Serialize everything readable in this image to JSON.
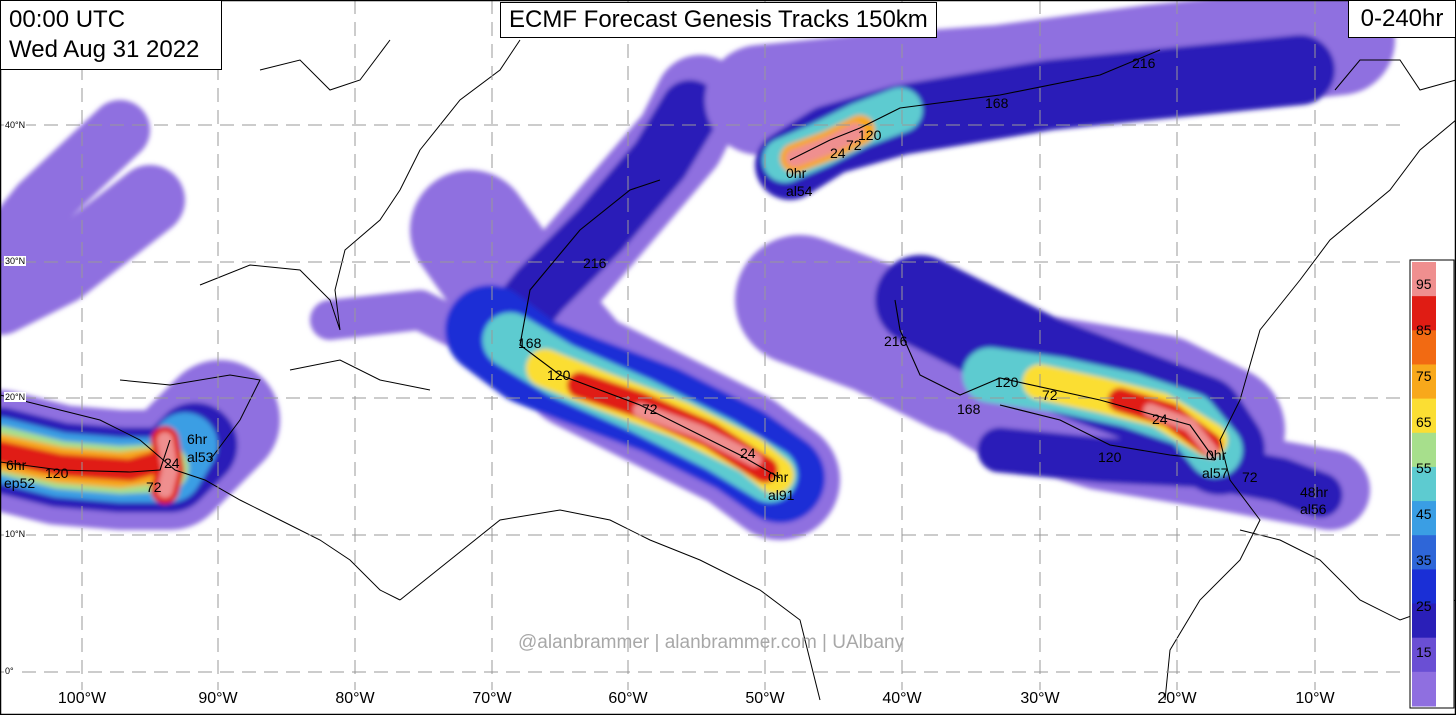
{
  "header": {
    "time_utc": "00:00 UTC",
    "date": "Wed Aug 31 2022",
    "title": "ECMF Forecast Genesis Tracks 150km",
    "range": "0-240hr"
  },
  "credit": "@alanbrammer | alanbrammer.com | UAlbany",
  "axes": {
    "lon_labels": [
      "100°W",
      "90°W",
      "80°W",
      "70°W",
      "60°W",
      "50°W",
      "40°W",
      "30°W",
      "20°W",
      "10°W"
    ],
    "lat_labels": [
      "40°N",
      "30°N",
      "20°N",
      "10°N",
      "0°"
    ]
  },
  "colorbar": {
    "labels": [
      "95",
      "85",
      "75",
      "65",
      "55",
      "45",
      "35",
      "25",
      "15"
    ],
    "colors": [
      "#ef8f8f",
      "#e01c14",
      "#f26a12",
      "#f8a81b",
      "#fbde33",
      "#a7df8c",
      "#5dcbd0",
      "#3a9ee4",
      "#2e66d8",
      "#1a2fd6",
      "#2a1fb8",
      "#6a4fd4",
      "#8f6fe0"
    ]
  },
  "systems": [
    {
      "id": "ep52",
      "labels": [
        "6hr",
        "ep52",
        "120",
        "72",
        "24"
      ]
    },
    {
      "id": "al53",
      "labels": [
        "6hr",
        "al53"
      ]
    },
    {
      "id": "al91",
      "labels": [
        "0hr",
        "al91",
        "24",
        "72",
        "120",
        "168",
        "216"
      ]
    },
    {
      "id": "al54",
      "labels": [
        "0hr",
        "al54",
        "24",
        "72",
        "120",
        "168",
        "216"
      ]
    },
    {
      "id": "al57",
      "labels": [
        "0hr",
        "al57",
        "24",
        "72",
        "120",
        "168",
        "216"
      ]
    },
    {
      "id": "al56",
      "labels": [
        "72",
        "48hr",
        "al56",
        "120"
      ]
    }
  ]
}
